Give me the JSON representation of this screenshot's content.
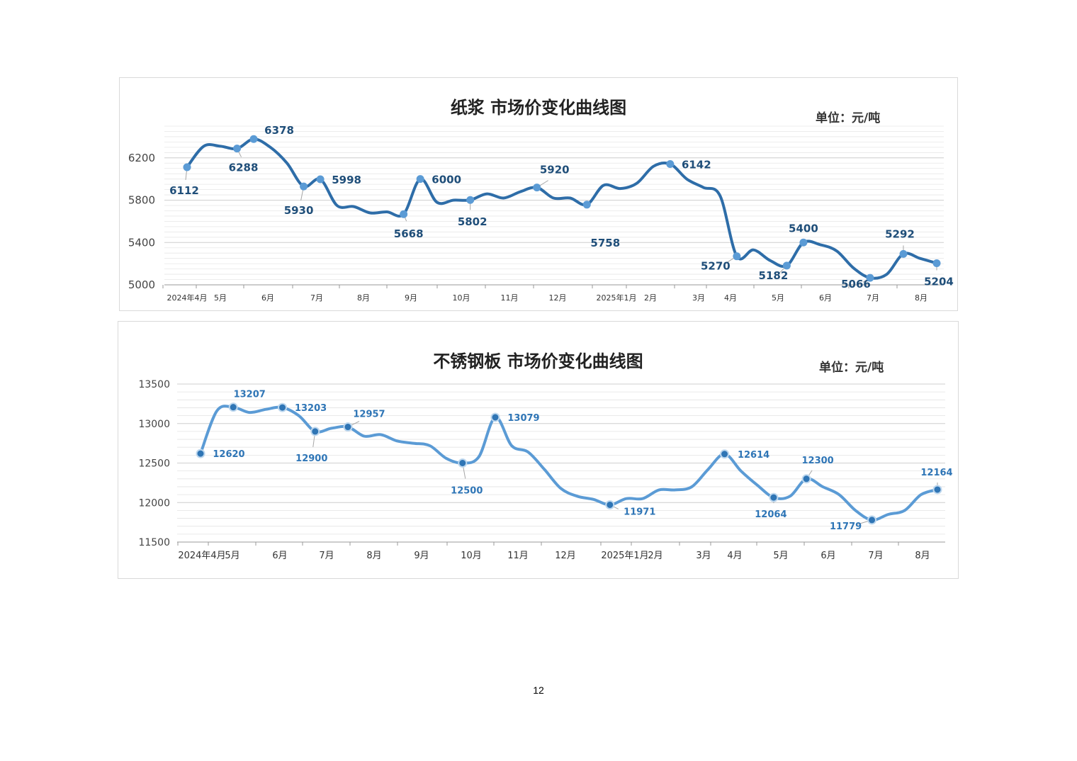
{
  "page_number": "12",
  "colors": {
    "pulp_line": "#2e6da8",
    "pulp_marker": "#5b9bd5",
    "pulp_label": "#1f4e79",
    "steel_line": "#5b9bd5",
    "steel_marker": "#2f75b5",
    "steel_label": "#2e75b6"
  },
  "chart_data": [
    {
      "type": "line",
      "title": "纸浆 市场价变化曲线图",
      "unit_label": "单位：元/吨",
      "ylim": [
        5000,
        6500
      ],
      "y_ticks": [
        5000,
        5400,
        5800,
        6200
      ],
      "x_ticks": [
        "2024年4月",
        "5月",
        "6月",
        "7月",
        "8月",
        "9月",
        "10月",
        "11月",
        "12月",
        "2025年1月",
        "2月",
        "3月",
        "4月",
        "5月",
        "6月",
        "7月",
        "8月"
      ],
      "grid": true,
      "legend": "none",
      "series": [
        {
          "values": [
            6112,
            6310,
            6310,
            6288,
            6378,
            6300,
            6150,
            5930,
            5998,
            5750,
            5740,
            5680,
            5690,
            5668,
            6000,
            5780,
            5800,
            5802,
            5860,
            5820,
            5880,
            5920,
            5820,
            5820,
            5758,
            5940,
            5910,
            5960,
            6120,
            6142,
            6000,
            5920,
            5840,
            5270,
            5330,
            5230,
            5182,
            5400,
            5380,
            5320,
            5160,
            5066,
            5100,
            5292,
            5250,
            5204
          ],
          "labeled": [
            {
              "index": 0,
              "value": "6112"
            },
            {
              "index": 3,
              "value": "6288"
            },
            {
              "index": 4,
              "value": "6378"
            },
            {
              "index": 7,
              "value": "5930"
            },
            {
              "index": 8,
              "value": "5998"
            },
            {
              "index": 13,
              "value": "5668"
            },
            {
              "index": 14,
              "value": "6000"
            },
            {
              "index": 17,
              "value": "5802"
            },
            {
              "index": 21,
              "value": "5920"
            },
            {
              "index": 24,
              "value": "5758"
            },
            {
              "index": 29,
              "value": "6142"
            },
            {
              "index": 33,
              "value": "5270"
            },
            {
              "index": 36,
              "value": "5182"
            },
            {
              "index": 37,
              "value": "5400"
            },
            {
              "index": 41,
              "value": "5066"
            },
            {
              "index": 43,
              "value": "5292"
            },
            {
              "index": 45,
              "value": "5204"
            }
          ]
        }
      ]
    },
    {
      "type": "line",
      "title": "不锈钢板 市场价变化曲线图",
      "unit_label": "单位：元/吨",
      "ylim": [
        11500,
        13500
      ],
      "y_ticks": [
        11500,
        12000,
        12500,
        13000,
        13500
      ],
      "x_ticks": [
        "2024年4月",
        "5月",
        "6月",
        "7月",
        "8月",
        "9月",
        "10月",
        "11月",
        "12月",
        "2025年1月",
        "2月",
        "3月",
        "4月",
        "5月",
        "6月",
        "7月",
        "8月"
      ],
      "grid": true,
      "legend": "none",
      "series": [
        {
          "values": [
            12620,
            13160,
            13207,
            13140,
            13180,
            13203,
            13100,
            12900,
            12940,
            12957,
            12840,
            12860,
            12780,
            12750,
            12720,
            12560,
            12500,
            12580,
            13079,
            12720,
            12640,
            12420,
            12180,
            12080,
            12040,
            11971,
            12050,
            12050,
            12160,
            12160,
            12200,
            12420,
            12614,
            12400,
            12220,
            12064,
            12080,
            12300,
            12200,
            12100,
            11900,
            11779,
            11850,
            11900,
            12100,
            12164
          ],
          "labeled": [
            {
              "index": 0,
              "value": "12620"
            },
            {
              "index": 2,
              "value": "13207"
            },
            {
              "index": 5,
              "value": "13203"
            },
            {
              "index": 7,
              "value": "12900"
            },
            {
              "index": 9,
              "value": "12957"
            },
            {
              "index": 16,
              "value": "12500"
            },
            {
              "index": 18,
              "value": "13079"
            },
            {
              "index": 25,
              "value": "11971"
            },
            {
              "index": 32,
              "value": "12614"
            },
            {
              "index": 35,
              "value": "12064"
            },
            {
              "index": 37,
              "value": "12300"
            },
            {
              "index": 41,
              "value": "11779"
            },
            {
              "index": 45,
              "value": "12164"
            }
          ]
        }
      ]
    }
  ]
}
